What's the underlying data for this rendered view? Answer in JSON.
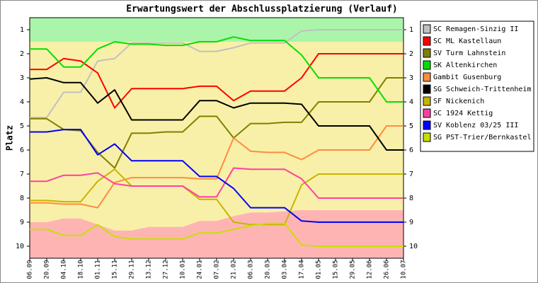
{
  "chart_data": {
    "type": "line",
    "title": "Erwartungswert der Abschlussplatzierung (Verlauf)",
    "y_label": "Platz",
    "categories": [
      "06.09",
      "20.09",
      "04.10",
      "18.10",
      "01.11",
      "15.11",
      "29.11",
      "13.12",
      "27.12",
      "10.01",
      "24.01",
      "07.02",
      "21.02",
      "06.03",
      "20.03",
      "03.04",
      "17.04",
      "01.05",
      "15.05",
      "29.05",
      "12.06",
      "26.06",
      "10.07"
    ],
    "ylim": [
      0.5,
      10.5
    ],
    "y_inverted": true,
    "yticks": [
      1,
      2,
      3,
      4,
      5,
      6,
      7,
      8,
      9,
      10
    ],
    "zones": {
      "top_limit": 1.5,
      "top_color": "#aaf5aa",
      "middle_color": "#f8f0a8",
      "bottom_color": "#ffb4b4",
      "bottom_limit": [
        9.0,
        9.0,
        8.85,
        8.85,
        9.1,
        9.35,
        9.35,
        9.2,
        9.2,
        9.2,
        8.95,
        8.95,
        8.75,
        8.6,
        8.6,
        8.55,
        8.5,
        8.5,
        8.5,
        8.5,
        8.5,
        8.5,
        8.5
      ]
    },
    "series": [
      {
        "name": "SC Remagen-Sinzig II",
        "color": "#c0c0c0",
        "values": [
          4.65,
          4.65,
          3.6,
          3.6,
          2.3,
          2.2,
          1.55,
          1.55,
          1.55,
          1.55,
          1.9,
          1.9,
          1.75,
          1.55,
          1.55,
          1.55,
          1.05,
          1.0,
          1.0,
          1.0,
          1.0,
          1.0,
          1.0
        ]
      },
      {
        "name": "SC ML Kastellaun",
        "color": "#ff0000",
        "values": [
          2.65,
          2.65,
          2.2,
          2.3,
          2.8,
          4.25,
          3.45,
          3.45,
          3.45,
          3.45,
          3.35,
          3.35,
          3.95,
          3.55,
          3.55,
          3.55,
          3.0,
          2.0,
          2.0,
          2.0,
          2.0,
          2.0,
          2.0
        ]
      },
      {
        "name": "SV Turm Lahnstein",
        "color": "#808000",
        "values": [
          4.7,
          4.7,
          5.15,
          5.2,
          6.1,
          6.75,
          5.3,
          5.3,
          5.25,
          5.25,
          4.6,
          4.6,
          5.5,
          4.9,
          4.9,
          4.85,
          4.85,
          4.0,
          4.0,
          4.0,
          4.0,
          3.0,
          3.0
        ]
      },
      {
        "name": "SK Altenkirchen",
        "color": "#00e000",
        "values": [
          1.8,
          1.8,
          2.55,
          2.55,
          1.8,
          1.5,
          1.6,
          1.6,
          1.65,
          1.65,
          1.5,
          1.5,
          1.3,
          1.45,
          1.45,
          1.45,
          2.05,
          3.0,
          3.0,
          3.0,
          3.0,
          4.0,
          4.0
        ]
      },
      {
        "name": "Gambit Gusenburg",
        "color": "#ff8c40",
        "values": [
          8.2,
          8.2,
          8.25,
          8.25,
          8.4,
          7.35,
          7.15,
          7.15,
          7.15,
          7.15,
          7.2,
          7.2,
          5.5,
          6.05,
          6.1,
          6.1,
          6.4,
          6.0,
          6.0,
          6.0,
          6.0,
          5.0,
          5.0
        ]
      },
      {
        "name": "SG Schweich-Trittenheim",
        "color": "#000000",
        "values": [
          3.05,
          3.0,
          3.2,
          3.2,
          4.05,
          3.5,
          4.75,
          4.75,
          4.75,
          4.75,
          3.95,
          3.95,
          4.25,
          4.05,
          4.05,
          4.05,
          4.1,
          5.0,
          5.0,
          5.0,
          5.0,
          6.0,
          6.0
        ]
      },
      {
        "name": "SF Nickenich",
        "color": "#c8b400",
        "values": [
          8.1,
          8.1,
          8.15,
          8.15,
          7.3,
          6.8,
          7.5,
          7.5,
          7.5,
          7.5,
          8.05,
          8.05,
          9.0,
          9.1,
          9.1,
          9.1,
          7.45,
          7.0,
          7.0,
          7.0,
          7.0,
          7.0,
          7.0
        ]
      },
      {
        "name": "SC 1924 Kettig",
        "color": "#ff40a0",
        "values": [
          7.3,
          7.3,
          7.05,
          7.05,
          6.95,
          7.4,
          7.5,
          7.5,
          7.5,
          7.5,
          7.95,
          7.95,
          6.75,
          6.8,
          6.8,
          6.8,
          7.2,
          8.0,
          8.0,
          8.0,
          8.0,
          8.0,
          8.0
        ]
      },
      {
        "name": "SV Koblenz 03/25 III",
        "color": "#0000ff",
        "values": [
          5.25,
          5.25,
          5.15,
          5.15,
          6.2,
          5.75,
          6.45,
          6.45,
          6.45,
          6.45,
          7.1,
          7.1,
          7.6,
          8.4,
          8.4,
          8.4,
          8.95,
          9.0,
          9.0,
          9.0,
          9.0,
          9.0,
          9.0
        ]
      },
      {
        "name": "SG PST-Trier/Bernkastel",
        "color": "#c8e000",
        "values": [
          9.3,
          9.3,
          9.55,
          9.55,
          9.1,
          9.6,
          9.7,
          9.7,
          9.7,
          9.7,
          9.45,
          9.45,
          9.3,
          9.15,
          9.05,
          9.05,
          9.95,
          10.0,
          10.0,
          10.0,
          10.0,
          10.0,
          10.0
        ]
      }
    ]
  }
}
